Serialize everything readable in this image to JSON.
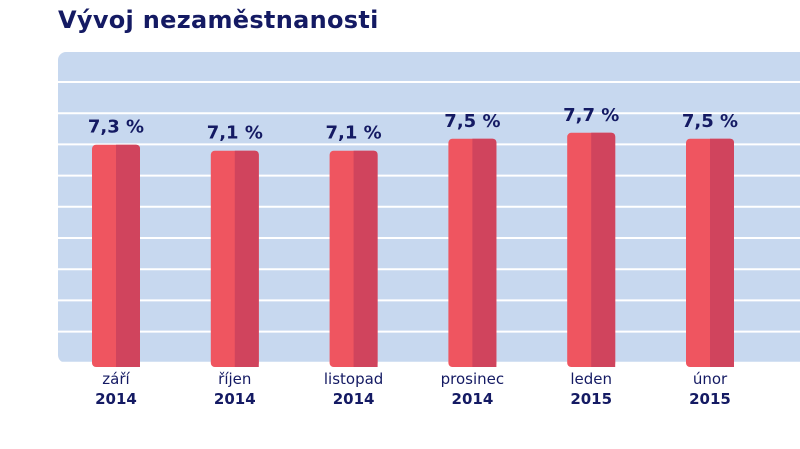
{
  "title": "Vývoj nezaměstnanosti",
  "colors": {
    "panel": "#c7d8ef",
    "gridline": "#ffffff",
    "bar_light": "#ef5560",
    "bar_dark": "#d0445d",
    "text": "#141a63"
  },
  "chart_data": {
    "type": "bar",
    "title": "Vývoj nezaměstnanosti",
    "categories": [
      [
        "září",
        "2014"
      ],
      [
        "říjen",
        "2014"
      ],
      [
        "listopad",
        "2014"
      ],
      [
        "prosinec",
        "2014"
      ],
      [
        "leden",
        "2015"
      ],
      [
        "únor",
        "2015"
      ]
    ],
    "values": [
      7.3,
      7.1,
      7.1,
      7.5,
      7.7,
      7.5
    ],
    "value_labels": [
      "7,3 %",
      "7,1 %",
      "7,1 %",
      "7,5 %",
      "7,7 %",
      "7,5 %"
    ],
    "xlabel": "",
    "ylabel": "",
    "ylim": [
      0,
      8.5
    ],
    "grid": true,
    "legend": "none"
  }
}
